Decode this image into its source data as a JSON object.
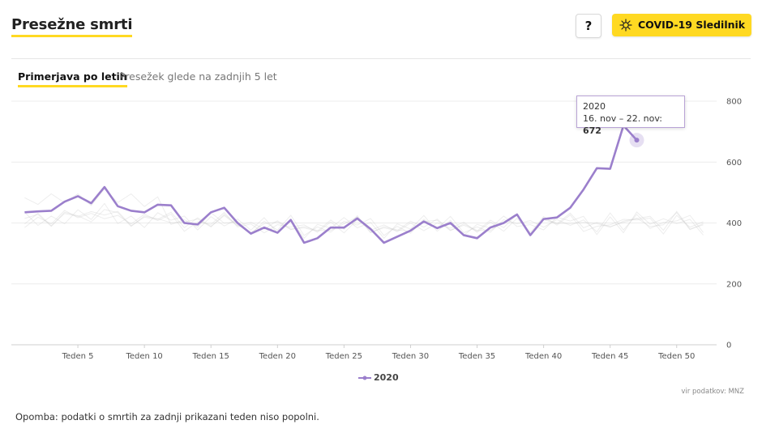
{
  "header": {
    "title": "Presežne smrti",
    "help_label": "?",
    "tracker_label": "COVID-19 Sledilnik",
    "tracker_icon": "virus-icon"
  },
  "tabs": [
    {
      "label": "Primerjava po letih",
      "active": true
    },
    {
      "label": "Presežek glede na zadnjih 5 let",
      "active": false
    }
  ],
  "tooltip": {
    "year": "2020",
    "range": "16. nov – 22. nov: ",
    "value": "672"
  },
  "legend": {
    "label": "2020"
  },
  "source": "vir podatkov: MNZ",
  "note": "Opomba: podatki o smrtih za zadnji prikazani teden niso popolni.",
  "chart_data": {
    "type": "line",
    "x": [
      1,
      2,
      3,
      4,
      5,
      6,
      7,
      8,
      9,
      10,
      11,
      12,
      13,
      14,
      15,
      16,
      17,
      18,
      19,
      20,
      21,
      22,
      23,
      24,
      25,
      26,
      27,
      28,
      29,
      30,
      31,
      32,
      33,
      34,
      35,
      36,
      37,
      38,
      39,
      40,
      41,
      42,
      43,
      44,
      45,
      46,
      47
    ],
    "series": [
      {
        "name": "2020",
        "color": "#9b7fcc",
        "values": [
          435,
          438,
          440,
          470,
          488,
          465,
          518,
          455,
          440,
          435,
          460,
          458,
          400,
          395,
          435,
          450,
          400,
          365,
          385,
          368,
          410,
          335,
          350,
          385,
          385,
          415,
          380,
          335,
          355,
          375,
          405,
          383,
          400,
          360,
          350,
          385,
          400,
          428,
          360,
          413,
          418,
          450,
          510,
          580,
          578,
          720,
          672
        ]
      }
    ],
    "background_series_color": "#cccccc",
    "xlim": [
      0,
      53
    ],
    "ylim": [
      0,
      800
    ],
    "yticks": [
      0,
      200,
      400,
      600,
      800
    ],
    "xticks": [
      5,
      10,
      15,
      20,
      25,
      30,
      35,
      40,
      45,
      50
    ],
    "xtick_labels": [
      "Teden 5",
      "Teden 10",
      "Teden 15",
      "Teden 20",
      "Teden 25",
      "Teden 30",
      "Teden 35",
      "Teden 40",
      "Teden 45",
      "Teden 50"
    ],
    "grid": true,
    "y_axis_side": "right",
    "legend_position": "bottom-center",
    "highlight_week": 47
  }
}
